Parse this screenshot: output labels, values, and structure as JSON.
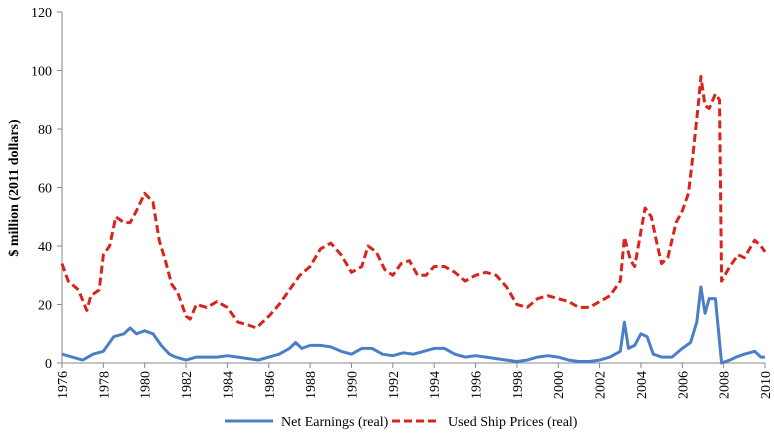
{
  "chart_data": {
    "type": "line",
    "y_axis_label": "$ million (2011 dollars)",
    "xlim": [
      1976,
      2010
    ],
    "xticks": [
      1976,
      1978,
      1980,
      1982,
      1984,
      1986,
      1988,
      1990,
      1992,
      1994,
      1996,
      1998,
      2000,
      2002,
      2004,
      2006,
      2008,
      2010
    ],
    "ylim": [
      0,
      120
    ],
    "yticks": [
      0,
      20,
      40,
      60,
      80,
      100,
      120
    ],
    "grid": false,
    "legend": "bottom",
    "series": [
      {
        "name": "Net Earnings (real)",
        "color": "#4a7fc8",
        "dash": false,
        "x": [
          1976,
          1976.5,
          1977,
          1977.5,
          1978,
          1978.5,
          1979,
          1979.3,
          1979.6,
          1980,
          1980.4,
          1980.8,
          1981.2,
          1981.5,
          1982,
          1982.5,
          1983,
          1983.5,
          1984,
          1984.5,
          1985,
          1985.5,
          1986,
          1986.5,
          1987,
          1987.3,
          1987.6,
          1988,
          1988.5,
          1989,
          1989.5,
          1990,
          1990.5,
          1991,
          1991.5,
          1992,
          1992.5,
          1993,
          1993.5,
          1994,
          1994.5,
          1995,
          1995.5,
          1996,
          1996.5,
          1997,
          1997.5,
          1998,
          1998.5,
          1999,
          1999.5,
          2000,
          2000.5,
          2001,
          2001.5,
          2002,
          2002.5,
          2003,
          2003.2,
          2003.4,
          2003.7,
          2004,
          2004.3,
          2004.6,
          2005,
          2005.5,
          2006,
          2006.4,
          2006.7,
          2006.9,
          2007.1,
          2007.3,
          2007.6,
          2007.9,
          2008.3,
          2008.6,
          2009,
          2009.5,
          2009.8,
          2010
        ],
        "values": [
          3,
          2,
          1,
          3,
          4,
          9,
          10,
          12,
          10,
          11,
          10,
          6,
          3,
          2,
          1,
          2,
          2,
          2,
          2.5,
          2,
          1.5,
          1,
          2,
          3,
          5,
          7,
          5,
          6,
          6,
          5.5,
          4,
          3,
          5,
          5,
          3,
          2.5,
          3.5,
          3,
          4,
          5,
          5,
          3,
          2,
          2.5,
          2,
          1.5,
          1,
          0.5,
          1,
          2,
          2.5,
          2,
          1,
          0.5,
          0.5,
          1,
          2,
          4,
          14,
          5,
          6,
          10,
          9,
          3,
          2,
          2,
          5,
          7,
          14,
          26,
          17,
          22,
          22,
          0,
          1,
          2,
          3,
          4,
          2,
          2
        ]
      },
      {
        "name": "Used Ship Prices (real)",
        "color": "#d9241c",
        "dash": true,
        "x": [
          1976,
          1976.3,
          1976.8,
          1977.2,
          1977.4,
          1977.8,
          1978,
          1978.3,
          1978.6,
          1979,
          1979.3,
          1979.6,
          1980,
          1980.4,
          1980.7,
          1981,
          1981.3,
          1981.6,
          1982,
          1982.2,
          1982.5,
          1983,
          1983.5,
          1984,
          1984.5,
          1985,
          1985.4,
          1986,
          1986.5,
          1987,
          1987.5,
          1988,
          1988.5,
          1989,
          1989.5,
          1990,
          1990.5,
          1990.8,
          1991.2,
          1991.6,
          1992,
          1992.4,
          1992.8,
          1993.2,
          1993.6,
          1994,
          1994.5,
          1995,
          1995.5,
          1996,
          1996.5,
          1997,
          1997.5,
          1998,
          1998.5,
          1999,
          1999.5,
          2000,
          2000.5,
          2001,
          2001.5,
          2002,
          2002.5,
          2003,
          2003.2,
          2003.5,
          2003.7,
          2004,
          2004.2,
          2004.5,
          2004.8,
          2005,
          2005.3,
          2005.7,
          2006,
          2006.3,
          2006.5,
          2006.8,
          2006.9,
          2007.1,
          2007.3,
          2007.6,
          2007.8,
          2007.9,
          2008.3,
          2008.7,
          2009,
          2009.5,
          2009.8,
          2010
        ],
        "values": [
          34,
          28,
          25,
          18,
          23,
          25,
          37,
          40,
          50,
          48,
          48,
          52,
          58,
          55,
          42,
          35,
          27,
          24,
          16,
          15,
          20,
          19,
          21,
          19,
          14,
          13,
          12,
          16,
          20,
          25,
          30,
          33,
          39,
          41,
          37,
          31,
          33,
          40,
          38,
          32,
          30,
          34,
          35,
          30,
          30,
          33,
          33,
          31,
          28,
          30,
          31,
          30,
          26,
          20,
          19,
          22,
          23,
          22,
          21,
          19,
          19,
          21,
          23,
          28,
          43,
          35,
          33,
          45,
          53,
          50,
          40,
          34,
          36,
          48,
          52,
          58,
          70,
          90,
          98,
          88,
          87,
          92,
          90,
          28,
          33,
          37,
          36,
          42,
          40,
          38
        ]
      }
    ]
  }
}
